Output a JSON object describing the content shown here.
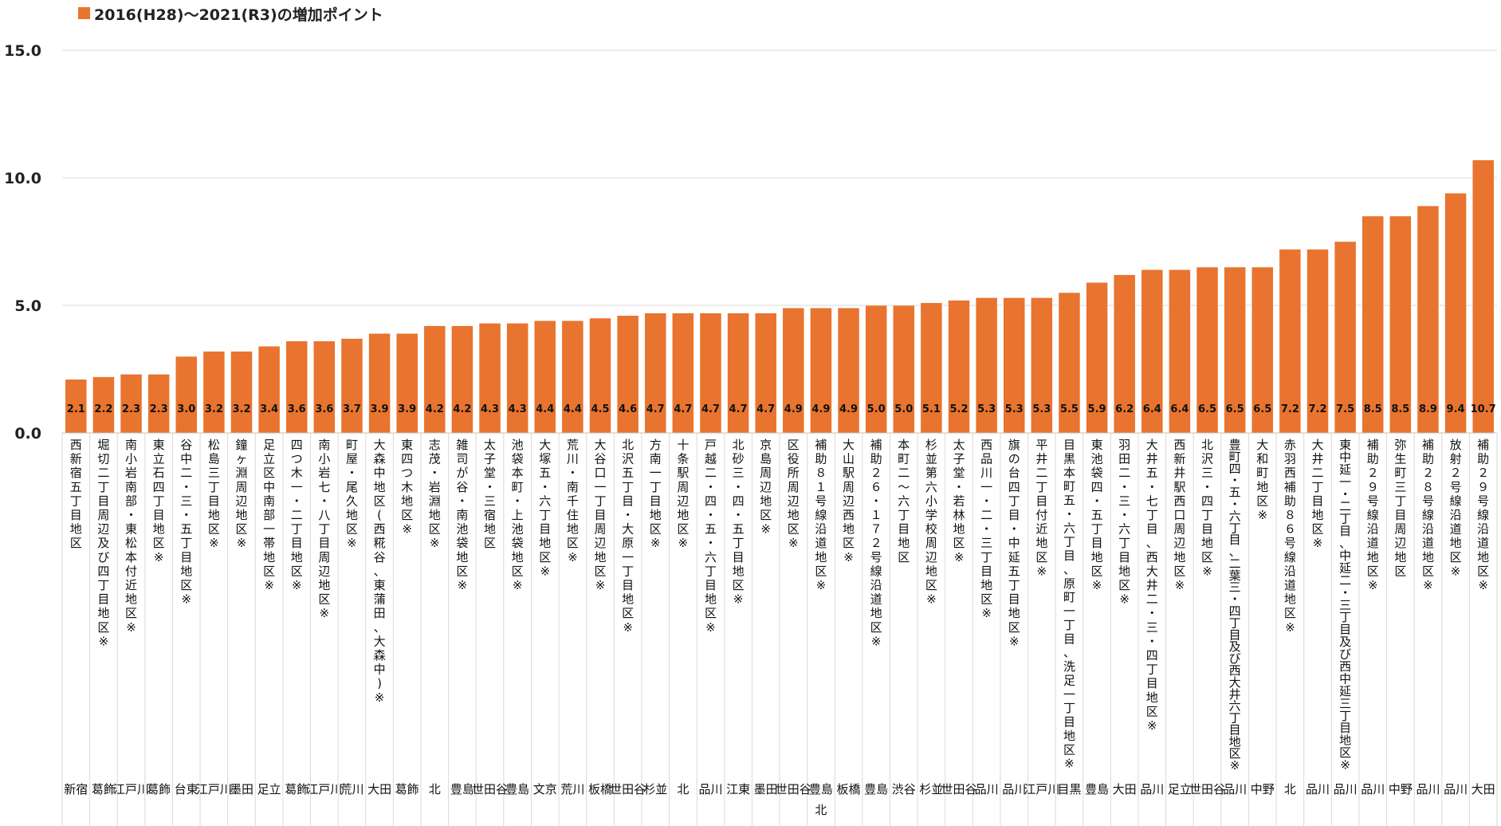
{
  "chart_data": {
    "type": "bar",
    "legend": {
      "label": "2016(H28)～2021(R3)の増加ポイント",
      "position": "top-left"
    },
    "color": "#E8742F",
    "ylim": [
      0,
      15
    ],
    "yticks": [
      "0.0",
      "5.0",
      "10.0",
      "15.0"
    ],
    "grid": true,
    "categories": [
      "西新宿五丁目地区",
      "堀切二丁目周辺及び四丁目地区※",
      "南小岩南部・東松本付近地区※",
      "東立石四丁目地区※",
      "谷中二・三・五丁目地区※",
      "松島三丁目地区※",
      "鐘ヶ淵周辺地区※",
      "足立区中南部一帯地区※",
      "四つ木一・二丁目地区※",
      "南小岩七・八丁目周辺地区※",
      "町屋・尾久地区※",
      "大森中地区(西糀谷、東蒲田、大森中)※",
      "東四つ木地区※",
      "志茂・岩淵地区※",
      "雑司が谷・南池袋地区※",
      "太子堂・三宿地区",
      "池袋本町・上池袋地区※",
      "大塚五・六丁目地区※",
      "荒川・南千住地区※",
      "大谷口一丁目周辺地区※",
      "北沢五丁目・大原一丁目地区※",
      "方南一丁目地区※",
      "十条駅周辺地区※",
      "戸越二・四・五・六丁目地区※",
      "北砂三・四・五丁目地区※",
      "京島周辺地区※",
      "区役所周辺地区※",
      "補助８１号線沿道地区※",
      "大山駅周辺西地区※",
      "補助２６・１７２号線沿道地区※",
      "本町二～六丁目地区",
      "杉並第六小学校周辺地区※",
      "太子堂・若林地区※",
      "西品川一・二・三丁目地区※",
      "旗の台四丁目・中延五丁目地区※",
      "平井二丁目付近地区※",
      "目黒本町五・六丁目、原町一丁目、洗足一丁目地区※",
      "東池袋四・五丁目地区※",
      "羽田二・三・六丁目地区※",
      "大井五・七丁目、西大井二・三・四丁目地区※",
      "西新井駅西口周辺地区※",
      "北沢三・四丁目地区※",
      "豊町四・五・六丁目、二葉三・四丁目及び西大井六丁目地区※",
      "大和町地区※",
      "赤羽西補助８６号線沿道地区※",
      "大井二丁目地区※",
      "東中延一・二丁目、中延二・三丁目及び西中延三丁目地区※",
      "補助２９号線沿道地区※",
      "弥生町三丁目周辺地区",
      "補助２８号線沿道地区※",
      "放射２号線沿道地区※",
      "補助２９号線沿道地区※"
    ],
    "wards": [
      "新宿",
      "葛飾",
      "江戸川",
      "葛飾",
      "台東",
      "江戸川",
      "墨田",
      "足立",
      "葛飾",
      "江戸川",
      "荒川",
      "大田",
      "葛飾",
      "北",
      "豊島",
      "世田谷",
      "豊島",
      "文京",
      "荒川",
      "板橋",
      "世田谷",
      "杉並",
      "北",
      "品川",
      "江東",
      "墨田",
      "世田谷",
      "豊島\n北",
      "板橋",
      "豊島",
      "渋谷",
      "杉並",
      "世田谷",
      "品川",
      "品川",
      "江戸川",
      "目黒",
      "豊島",
      "大田",
      "品川",
      "足立",
      "世田谷",
      "品川",
      "中野",
      "北",
      "品川",
      "品川",
      "品川",
      "中野",
      "品川",
      "品川",
      "大田"
    ],
    "values": [
      2.1,
      2.2,
      2.3,
      2.3,
      3.0,
      3.2,
      3.2,
      3.4,
      3.6,
      3.6,
      3.7,
      3.9,
      3.9,
      4.2,
      4.2,
      4.3,
      4.3,
      4.4,
      4.4,
      4.5,
      4.6,
      4.7,
      4.7,
      4.7,
      4.7,
      4.7,
      4.9,
      4.9,
      4.9,
      5.0,
      5.0,
      5.1,
      5.2,
      5.3,
      5.3,
      5.3,
      5.5,
      5.9,
      6.2,
      6.4,
      6.4,
      6.5,
      6.5,
      6.5,
      7.2,
      7.2,
      7.5,
      8.5,
      8.5,
      8.9,
      9.4,
      10.7
    ]
  }
}
